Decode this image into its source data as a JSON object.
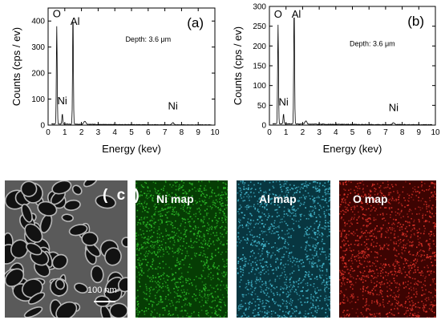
{
  "chart_data": [
    {
      "type": "line",
      "panel_label": "(a)",
      "xlabel": "Energy (kev)",
      "ylabel": "Counts (cps / ev)",
      "xlim": [
        0,
        10
      ],
      "ylim": [
        0,
        450
      ],
      "xticks": [
        0,
        1,
        2,
        3,
        4,
        5,
        6,
        7,
        8,
        9,
        10
      ],
      "yticks": [
        0,
        100,
        200,
        300,
        400
      ],
      "annotations": [
        {
          "text": "O",
          "x": 0.52,
          "y": 415
        },
        {
          "text": "Al",
          "x": 1.62,
          "y": 385
        },
        {
          "text": "Ni",
          "x": 0.85,
          "y": 80
        },
        {
          "text": "Ni",
          "x": 7.48,
          "y": 60
        },
        {
          "text": "Depth: 3.6 μm",
          "x": 6.0,
          "y": 320
        }
      ],
      "peaks": [
        {
          "x": 0.52,
          "y": 375
        },
        {
          "x": 0.85,
          "y": 40
        },
        {
          "x": 1.49,
          "y": 420
        },
        {
          "x": 2.2,
          "y": 12
        },
        {
          "x": 7.48,
          "y": 8
        }
      ],
      "background": 4
    },
    {
      "type": "line",
      "panel_label": "(b)",
      "xlabel": "Energy (kev)",
      "ylabel": "Counts (cps / ev)",
      "xlim": [
        0,
        10
      ],
      "ylim": [
        0,
        300
      ],
      "xticks": [
        0,
        1,
        2,
        3,
        4,
        5,
        6,
        7,
        8,
        9,
        10
      ],
      "yticks": [
        0,
        50,
        100,
        150,
        200,
        250,
        300
      ],
      "annotations": [
        {
          "text": "O",
          "x": 0.52,
          "y": 272
        },
        {
          "text": "Al",
          "x": 1.62,
          "y": 272
        },
        {
          "text": "Ni",
          "x": 0.85,
          "y": 50
        },
        {
          "text": "Ni",
          "x": 7.48,
          "y": 35
        },
        {
          "text": "Depth: 3.6 μm",
          "x": 6.2,
          "y": 200
        }
      ],
      "peaks": [
        {
          "x": 0.52,
          "y": 250
        },
        {
          "x": 0.85,
          "y": 25
        },
        {
          "x": 1.49,
          "y": 290
        },
        {
          "x": 2.2,
          "y": 8
        },
        {
          "x": 7.48,
          "y": 5
        }
      ],
      "background": 3
    }
  ],
  "images": {
    "sem": {
      "label": "( c )",
      "scale_bar": "100 nm"
    },
    "ni_map": {
      "label": "Ni map",
      "color": "#2fbf2a"
    },
    "al_map": {
      "label": "Al map",
      "color": "#48bfd6"
    },
    "o_map": {
      "label": "O map",
      "color": "#e0342a"
    }
  }
}
